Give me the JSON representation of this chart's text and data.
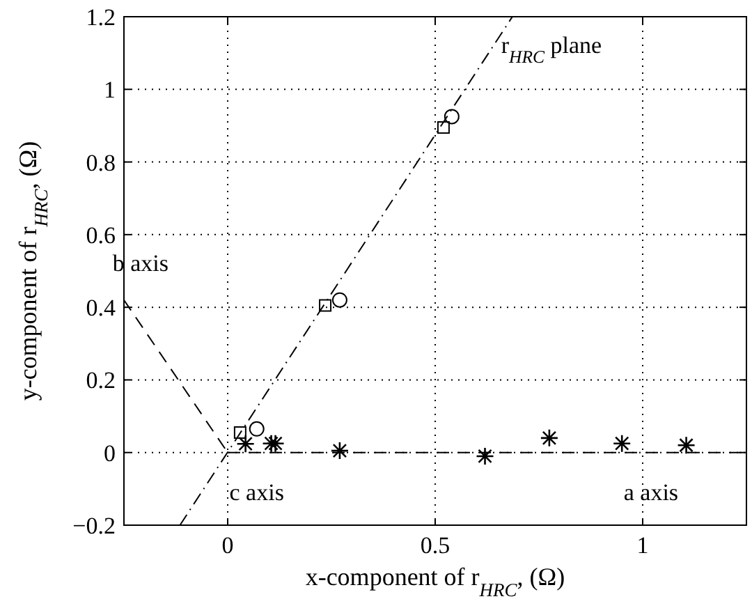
{
  "chart_data": {
    "type": "scatter",
    "xlabel": "x-component of r$_{HRC}$, (Ω)",
    "ylabel": "y-component of r$_{HRC}$, (Ω)",
    "xlim": [
      -0.25,
      1.25
    ],
    "ylim": [
      -0.2,
      1.2
    ],
    "xticks": [
      0,
      0.5,
      1
    ],
    "yticks": [
      -0.2,
      0,
      0.2,
      0.4,
      0.6,
      0.8,
      1,
      1.2
    ],
    "grid": true,
    "legend": false,
    "series": [
      {
        "type": "line",
        "color": "#000000",
        "marker": "none",
        "line_style": "dashdot",
        "x": [
          -0.115,
          0.686
        ],
        "values": [
          -0.2,
          1.2
        ]
      },
      {
        "type": "line",
        "color": "#000000",
        "marker": "none",
        "line_style": "dashed",
        "x": [
          -0.25,
          0
        ],
        "values": [
          0.42,
          0
        ]
      },
      {
        "type": "line",
        "color": "#000000",
        "marker": "none",
        "line_style": "dashed",
        "x": [
          0,
          1.25
        ],
        "values": [
          0,
          0
        ]
      },
      {
        "color": "#000000",
        "marker": "square",
        "x": [
          0.03,
          0.235,
          0.52
        ],
        "values": [
          0.055,
          0.405,
          0.895
        ]
      },
      {
        "color": "#000000",
        "marker": "circle",
        "x": [
          0.07,
          0.27,
          0.54
        ],
        "values": [
          0.065,
          0.42,
          0.925
        ]
      },
      {
        "color": "#000000",
        "marker": "cross",
        "x": [
          0.043,
          0.105,
          0.115,
          0.27,
          0.62,
          0.775,
          0.95,
          1.105
        ],
        "values": [
          0.024,
          0.025,
          0.025,
          0.005,
          -0.01,
          0.04,
          0.025,
          0.02
        ]
      }
    ],
    "annotations": [
      "r$_{HRC}$ plane",
      "b axis",
      "c axis",
      "a axis"
    ]
  }
}
